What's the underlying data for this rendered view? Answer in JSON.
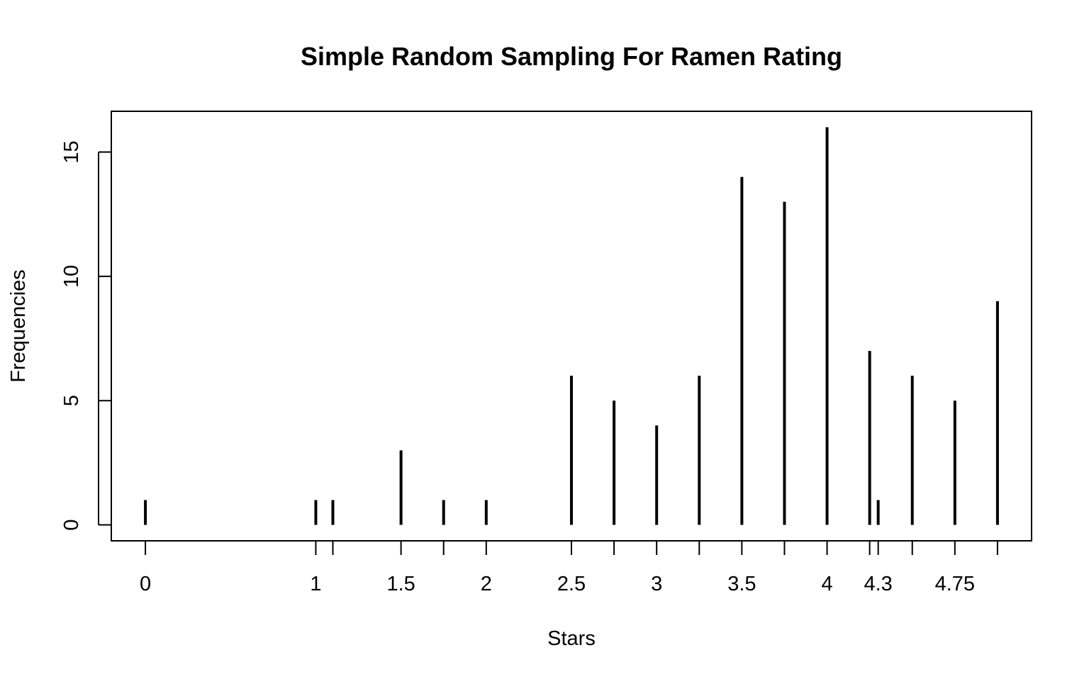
{
  "chart_data": {
    "type": "bar",
    "style": "vertical-lines",
    "title": "Simple Random Sampling For Ramen Rating",
    "xlabel": "Stars",
    "ylabel": "Frequencies",
    "x": [
      0,
      1,
      1.1,
      1.5,
      1.75,
      2,
      2.5,
      2.75,
      3,
      3.25,
      3.5,
      3.75,
      4,
      4.25,
      4.3,
      4.5,
      4.75,
      5
    ],
    "values": [
      1,
      1,
      1,
      3,
      1,
      1,
      6,
      5,
      4,
      6,
      14,
      13,
      16,
      7,
      1,
      6,
      5,
      9
    ],
    "x_tick_labels": [
      "0",
      "1",
      "",
      "1.5",
      "",
      "2",
      "2.5",
      "",
      "3",
      "",
      "3.5",
      "",
      "4",
      "",
      "4.3",
      "",
      "4.75",
      ""
    ],
    "y_ticks": [
      0,
      5,
      10,
      15
    ],
    "y_tick_labels": [
      "0",
      "5",
      "10",
      "15"
    ],
    "xlim": [
      -0.2,
      5.2
    ],
    "ylim": [
      -0.64,
      16.64
    ],
    "grid": false,
    "legend": "none",
    "colors": {
      "lines": "#000000",
      "frame": "#000000",
      "background": "#ffffff"
    }
  }
}
